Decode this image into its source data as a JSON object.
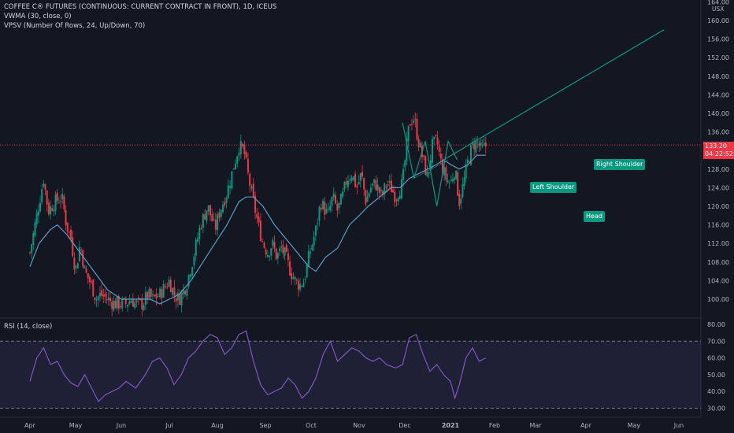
{
  "header": {
    "title": "COFFEE C® FUTURES (CONTINUOUS: CURRENT CONTRACT IN FRONT), 1D, ICEUS",
    "vwma_label": "VWMA (30, close, 0)",
    "vpsv_label": "VPSV (Number Of Rows, 24, Up/Down, 70)",
    "currency": "USX"
  },
  "price_axis": {
    "ticks": [
      "164.00",
      "160.00",
      "156.00",
      "152.00",
      "148.00",
      "144.00",
      "140.00",
      "136.00",
      "132.00",
      "128.00",
      "124.00",
      "120.00",
      "116.00",
      "112.00",
      "108.00",
      "104.00",
      "100.00"
    ],
    "tick_values": [
      164,
      160,
      156,
      152,
      148,
      144,
      140,
      136,
      132,
      128,
      124,
      120,
      116,
      112,
      108,
      104,
      100
    ],
    "current_price": "133.20",
    "countdown": "04:22:52"
  },
  "rsi": {
    "label": "RSI (14, close)",
    "ticks": [
      "80.00",
      "70.00",
      "60.00",
      "50.00",
      "40.00",
      "30.00"
    ],
    "tick_values": [
      80,
      70,
      60,
      50,
      40,
      30
    ]
  },
  "time_axis": {
    "labels": [
      "Apr",
      "May",
      "Jun",
      "Jul",
      "Aug",
      "Sep",
      "Oct",
      "Nov",
      "Dec",
      "2021",
      "Feb",
      "Mar",
      "Apr",
      "May",
      "Jun"
    ]
  },
  "pattern": {
    "left_shoulder": "Left Shoulder",
    "head": "Head",
    "right_shoulder": "Right Shoulder"
  },
  "colors": {
    "background": "#131722",
    "up": "#089981",
    "down": "#f23645",
    "vwma": "#5b9cc5",
    "rsi": "#7e57c2",
    "pattern": "#089981"
  },
  "chart_data": [
    {
      "type": "candlestick",
      "title": "COFFEE C® FUTURES (CONTINUOUS: CURRENT CONTRACT IN FRONT), 1D, ICEUS",
      "ylabel": "USX",
      "ylim": [
        98,
        165
      ],
      "x": [
        "Apr",
        "May",
        "Jun",
        "Jul",
        "Aug",
        "Sep",
        "Oct",
        "Nov",
        "Dec",
        "2021",
        "Feb",
        "Mar",
        "Apr",
        "May",
        "Jun"
      ],
      "close_path": [
        [
          0,
          110
        ],
        [
          0.15,
          118
        ],
        [
          0.3,
          126
        ],
        [
          0.4,
          119
        ],
        [
          0.55,
          121
        ],
        [
          0.7,
          122
        ],
        [
          0.8,
          116
        ],
        [
          0.9,
          113
        ],
        [
          1.0,
          106
        ],
        [
          1.1,
          112
        ],
        [
          1.2,
          106
        ],
        [
          1.35,
          103
        ],
        [
          1.45,
          100
        ],
        [
          1.55,
          101
        ],
        [
          1.7,
          100
        ],
        [
          1.85,
          99
        ],
        [
          2.0,
          99
        ],
        [
          2.1,
          99
        ],
        [
          2.2,
          100
        ],
        [
          2.3,
          99
        ],
        [
          2.45,
          99
        ],
        [
          2.55,
          101
        ],
        [
          2.65,
          100
        ],
        [
          2.8,
          101
        ],
        [
          3.0,
          104
        ],
        [
          3.1,
          101
        ],
        [
          3.2,
          100
        ],
        [
          3.35,
          103
        ],
        [
          3.5,
          109
        ],
        [
          3.65,
          116
        ],
        [
          3.8,
          120
        ],
        [
          3.95,
          115
        ],
        [
          4.05,
          119
        ],
        [
          4.2,
          123
        ],
        [
          4.35,
          129
        ],
        [
          4.45,
          133
        ],
        [
          4.55,
          132
        ],
        [
          4.65,
          126
        ],
        [
          4.75,
          121
        ],
        [
          4.85,
          116
        ],
        [
          4.95,
          112
        ],
        [
          5.05,
          110
        ],
        [
          5.15,
          112
        ],
        [
          5.25,
          109
        ],
        [
          5.35,
          111
        ],
        [
          5.45,
          109
        ],
        [
          5.55,
          106
        ],
        [
          5.65,
          104
        ],
        [
          5.75,
          103
        ],
        [
          5.85,
          104
        ],
        [
          5.95,
          109
        ],
        [
          6.1,
          115
        ],
        [
          6.2,
          121
        ],
        [
          6.35,
          118
        ],
        [
          6.45,
          122
        ],
        [
          6.55,
          119
        ],
        [
          6.65,
          122
        ],
        [
          6.75,
          126
        ],
        [
          6.85,
          127
        ],
        [
          6.95,
          124
        ],
        [
          7.05,
          127
        ],
        [
          7.15,
          121
        ],
        [
          7.25,
          124
        ],
        [
          7.35,
          125
        ],
        [
          7.5,
          122
        ],
        [
          7.6,
          125
        ],
        [
          7.7,
          124
        ],
        [
          7.8,
          122
        ],
        [
          7.95,
          125
        ],
        [
          8.1,
          138
        ],
        [
          8.2,
          139
        ],
        [
          8.3,
          134
        ],
        [
          8.4,
          130
        ],
        [
          8.5,
          126
        ],
        [
          8.6,
          133
        ],
        [
          8.7,
          134
        ],
        [
          8.8,
          129
        ],
        [
          8.9,
          126
        ],
        [
          9.0,
          125
        ],
        [
          9.1,
          128
        ],
        [
          9.2,
          121
        ],
        [
          9.3,
          125
        ],
        [
          9.4,
          130
        ],
        [
          9.5,
          133
        ],
        [
          9.6,
          134
        ],
        [
          9.7,
          132
        ],
        [
          9.8,
          133
        ]
      ],
      "vwma_path": [
        [
          0,
          107
        ],
        [
          0.2,
          112
        ],
        [
          0.45,
          115
        ],
        [
          0.6,
          116
        ],
        [
          0.8,
          114
        ],
        [
          1.1,
          110
        ],
        [
          1.4,
          106
        ],
        [
          1.7,
          102
        ],
        [
          2.0,
          100
        ],
        [
          2.3,
          100
        ],
        [
          2.6,
          100
        ],
        [
          2.8,
          99
        ],
        [
          3.0,
          100
        ],
        [
          3.2,
          101
        ],
        [
          3.45,
          104
        ],
        [
          3.7,
          108
        ],
        [
          3.95,
          112
        ],
        [
          4.2,
          116
        ],
        [
          4.45,
          121
        ],
        [
          4.6,
          122
        ],
        [
          4.75,
          122
        ],
        [
          4.95,
          120
        ],
        [
          5.2,
          116
        ],
        [
          5.45,
          113
        ],
        [
          5.7,
          110
        ],
        [
          5.95,
          107
        ],
        [
          6.1,
          106
        ],
        [
          6.3,
          109
        ],
        [
          6.55,
          111
        ],
        [
          6.8,
          116
        ],
        [
          7.0,
          118
        ],
        [
          7.2,
          120
        ],
        [
          7.45,
          122
        ],
        [
          7.7,
          124
        ],
        [
          7.9,
          124
        ],
        [
          8.1,
          126
        ],
        [
          8.3,
          127
        ],
        [
          8.5,
          128
        ],
        [
          8.7,
          129
        ],
        [
          8.85,
          130
        ],
        [
          9.0,
          129
        ],
        [
          9.2,
          128
        ],
        [
          9.4,
          129
        ],
        [
          9.6,
          131
        ],
        [
          9.8,
          131
        ]
      ]
    },
    {
      "type": "line",
      "title": "RSI (14, close)",
      "ylim": [
        28,
        82
      ],
      "reference_lines": [
        70,
        30
      ],
      "x": [
        "Apr",
        "May",
        "Jun",
        "Jul",
        "Aug",
        "Sep",
        "Oct",
        "Nov",
        "Dec",
        "2021",
        "Feb",
        "Mar",
        "Apr",
        "May",
        "Jun"
      ],
      "points": [
        [
          0,
          46
        ],
        [
          0.15,
          60
        ],
        [
          0.3,
          66
        ],
        [
          0.45,
          56
        ],
        [
          0.6,
          58
        ],
        [
          0.75,
          50
        ],
        [
          0.9,
          45
        ],
        [
          1.05,
          43
        ],
        [
          1.2,
          50
        ],
        [
          1.35,
          42
        ],
        [
          1.5,
          34
        ],
        [
          1.65,
          38
        ],
        [
          1.8,
          40
        ],
        [
          1.95,
          42
        ],
        [
          2.1,
          46
        ],
        [
          2.3,
          42
        ],
        [
          2.5,
          50
        ],
        [
          2.65,
          58
        ],
        [
          2.8,
          60
        ],
        [
          2.95,
          54
        ],
        [
          3.1,
          44
        ],
        [
          3.25,
          50
        ],
        [
          3.4,
          60
        ],
        [
          3.55,
          64
        ],
        [
          3.7,
          70
        ],
        [
          3.85,
          74
        ],
        [
          4.0,
          72
        ],
        [
          4.15,
          62
        ],
        [
          4.3,
          66
        ],
        [
          4.45,
          74
        ],
        [
          4.6,
          76
        ],
        [
          4.75,
          58
        ],
        [
          4.9,
          44
        ],
        [
          5.05,
          38
        ],
        [
          5.2,
          40
        ],
        [
          5.35,
          42
        ],
        [
          5.5,
          48
        ],
        [
          5.65,
          44
        ],
        [
          5.8,
          36
        ],
        [
          5.95,
          40
        ],
        [
          6.1,
          48
        ],
        [
          6.25,
          62
        ],
        [
          6.4,
          70
        ],
        [
          6.55,
          58
        ],
        [
          6.7,
          62
        ],
        [
          6.85,
          66
        ],
        [
          7.0,
          64
        ],
        [
          7.15,
          60
        ],
        [
          7.3,
          58
        ],
        [
          7.45,
          60
        ],
        [
          7.6,
          56
        ],
        [
          7.8,
          54
        ],
        [
          7.95,
          56
        ],
        [
          8.1,
          72
        ],
        [
          8.25,
          74
        ],
        [
          8.4,
          62
        ],
        [
          8.55,
          52
        ],
        [
          8.7,
          56
        ],
        [
          8.85,
          50
        ],
        [
          9.0,
          46
        ],
        [
          9.1,
          36
        ],
        [
          9.2,
          44
        ],
        [
          9.35,
          60
        ],
        [
          9.5,
          66
        ],
        [
          9.65,
          58
        ],
        [
          9.8,
          60
        ]
      ]
    }
  ]
}
